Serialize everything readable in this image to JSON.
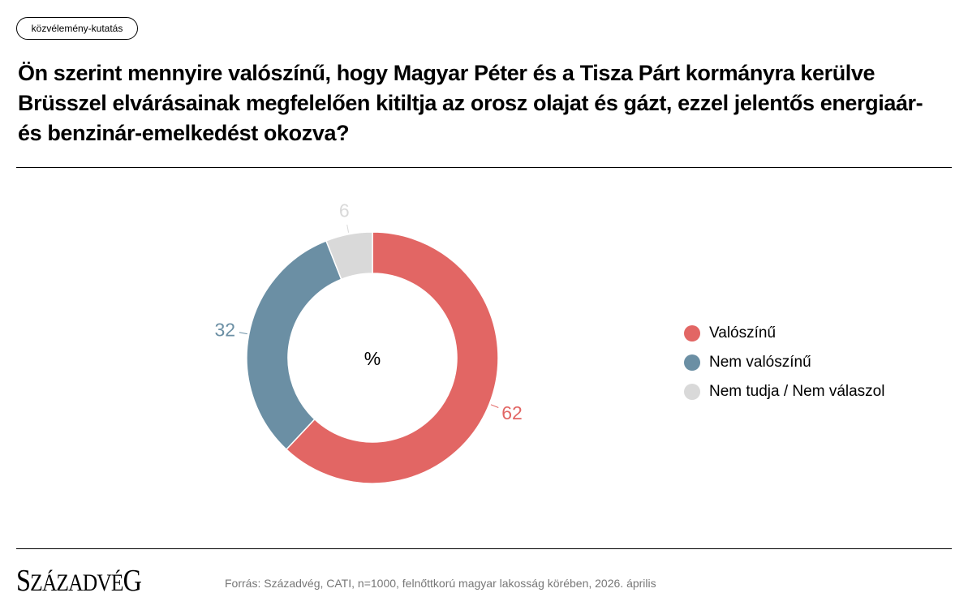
{
  "tag": "közvélemény-kutatás",
  "title": "Ön szerint mennyire valószínű, hogy Magyar Péter és a Tisza Párt kormányra kerülve Brüsszel elvárásainak megfelelően kitiltja az orosz olajat és gázt, ezzel jelentős energiaár- és benzinár-emelkedést okozva?",
  "chart_data": {
    "type": "donut",
    "center_label": "%",
    "categories": [
      "Valószínű",
      "Nem valószínű",
      "Nem tudja / Nem válaszol"
    ],
    "values": [
      62,
      32,
      6
    ],
    "labels": [
      "62",
      "32",
      "6"
    ],
    "colors": [
      "#e26664",
      "#6b8fa4",
      "#d9d9d9"
    ],
    "label_colors": [
      "#e26664",
      "#6b8fa4",
      "#d9d9d9"
    ],
    "legend_position": "right"
  },
  "footer": {
    "logo": "Századvég",
    "source": "Forrás: Századvég, CATI, n=1000, felnőttkorú magyar lakosság körében, 2026. április"
  }
}
